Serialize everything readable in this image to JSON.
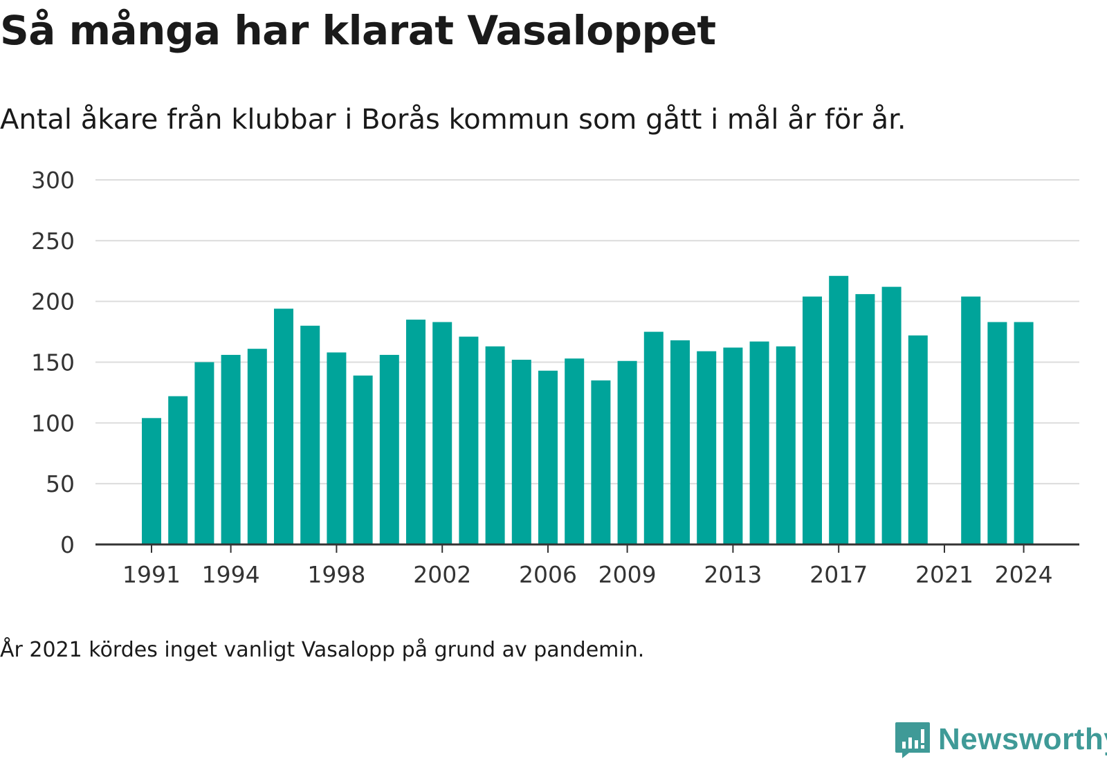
{
  "title": "Så många har klarat Vasaloppet",
  "subtitle": "Antal åkare från klubbar i Borås kommun som gått i mål år för år.",
  "note": "År 2021 kördes inget vanligt Vasalopp på grund av pandemin.",
  "brand": "Newsworthy",
  "colors": {
    "bar": "#00a49a",
    "grid": "#dcdcdc",
    "axis": "#333333",
    "brand": "#3f9a97"
  },
  "chart_data": {
    "type": "bar",
    "categories": [
      1991,
      1992,
      1993,
      1994,
      1995,
      1996,
      1997,
      1998,
      1999,
      2000,
      2001,
      2002,
      2003,
      2004,
      2005,
      2006,
      2007,
      2008,
      2009,
      2010,
      2011,
      2012,
      2013,
      2014,
      2015,
      2016,
      2017,
      2018,
      2019,
      2020,
      2021,
      2022,
      2023,
      2024
    ],
    "values": [
      104,
      122,
      150,
      156,
      161,
      194,
      180,
      158,
      139,
      156,
      185,
      183,
      171,
      163,
      152,
      143,
      153,
      135,
      151,
      175,
      168,
      159,
      162,
      167,
      163,
      204,
      221,
      206,
      212,
      172,
      null,
      204,
      183,
      183
    ],
    "x_tick_labels": [
      "1991",
      "1994",
      "1998",
      "2002",
      "2006",
      "2009",
      "2013",
      "2017",
      "2021",
      "2024"
    ],
    "y_ticks": [
      0,
      50,
      100,
      150,
      200,
      250,
      300
    ],
    "ylim": [
      0,
      300
    ],
    "xlabel": "",
    "ylabel": "",
    "grid": true
  }
}
